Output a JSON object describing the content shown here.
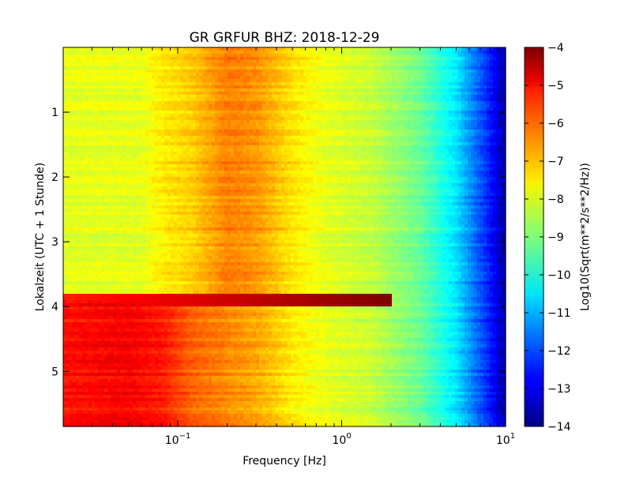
{
  "chart_data": {
    "type": "heatmap",
    "title": "GR GRFUR BHZ: 2018-12-29",
    "xlabel": "Frequency [Hz]",
    "ylabel": "Lokalzeit (UTC + 1 Stunde)",
    "x_scale": "log",
    "xlim": [
      0.02,
      10
    ],
    "ylim": [
      5.85,
      0
    ],
    "x_tick_values": [
      0.1,
      1,
      10
    ],
    "x_tick_labels": [
      {
        "base": "10",
        "exp": "−1"
      },
      {
        "base": "10",
        "exp": "0"
      },
      {
        "base": "10",
        "exp": "1"
      }
    ],
    "y_tick_values": [
      1,
      2,
      3,
      4,
      5
    ],
    "y_tick_labels": [
      "1",
      "2",
      "3",
      "4",
      "5"
    ],
    "colorbar": {
      "label": "Log10(Sqrt(m**2/s**2/Hz))",
      "range": [
        -14,
        -4
      ],
      "colormap": "jet",
      "tick_values": [
        -4,
        -5,
        -6,
        -7,
        -8,
        -9,
        -10,
        -11,
        -12,
        -13,
        -14
      ],
      "tick_labels": [
        "−4",
        "−5",
        "−6",
        "−7",
        "−8",
        "−9",
        "−10",
        "−11",
        "−12",
        "−13",
        "−14"
      ]
    },
    "profile_quiet": {
      "frequency_hz": [
        0.02,
        0.06,
        0.08,
        0.12,
        0.2,
        0.3,
        0.5,
        0.8,
        1.5,
        3,
        5,
        8,
        10
      ],
      "level": [
        -8.0,
        -8.0,
        -7.6,
        -7.3,
        -6.5,
        -6.7,
        -7.5,
        -8.0,
        -8.3,
        -9.2,
        -10.5,
        -12.5,
        -13.7
      ]
    },
    "profile_disturbed": {
      "time_range_hours": [
        3.87,
        5.85
      ],
      "frequency_hz": [
        0.02,
        0.05,
        0.08,
        0.12,
        0.2,
        0.3,
        0.5,
        0.8,
        1.5,
        3,
        5,
        8,
        10
      ],
      "level": [
        -5.4,
        -5.2,
        -5.5,
        -6.2,
        -6.6,
        -6.9,
        -7.6,
        -8.0,
        -8.3,
        -9.2,
        -10.5,
        -12.5,
        -13.7
      ]
    },
    "burst": {
      "time_hours": 3.9,
      "level": -5.0,
      "max_frequency_hz": 2
    }
  }
}
